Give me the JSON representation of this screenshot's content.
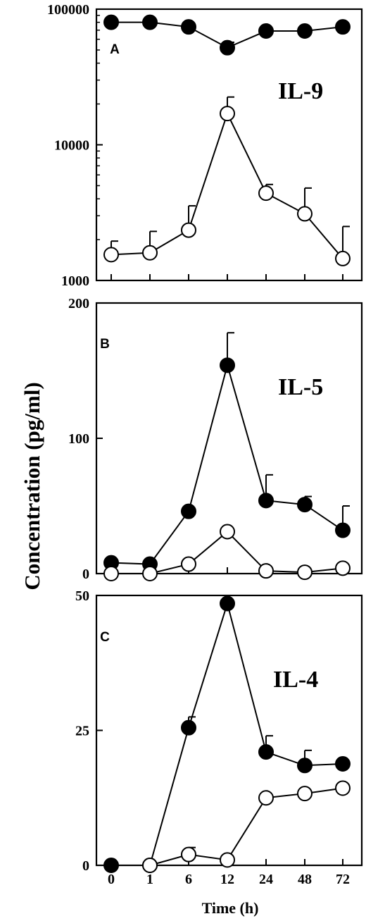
{
  "figure": {
    "ylabel": "Concentration (pg/ml)",
    "xlabel": "Time (h)"
  },
  "colors": {
    "filled_marker": "#000000",
    "open_marker": "#ffffff",
    "line": "#000000"
  },
  "chart_data": [
    {
      "type": "line",
      "panel_letter": "A",
      "title": "IL-9",
      "y_scale": "log",
      "ylim": [
        1000,
        100000
      ],
      "yticks": [
        1000,
        10000,
        100000
      ],
      "ytick_labels": [
        "1000",
        "10000",
        "100000"
      ],
      "categories": [
        "0",
        "1",
        "6",
        "12",
        "24",
        "48",
        "72"
      ],
      "show_x_tick_labels": false,
      "series": [
        {
          "marker": "filled",
          "values": [
            80000,
            80000,
            74000,
            52000,
            69000,
            69000,
            74000
          ],
          "errors": [
            null,
            null,
            null,
            57000,
            null,
            null,
            null
          ]
        },
        {
          "marker": "open",
          "values": [
            1550,
            1600,
            2350,
            17000,
            4400,
            3100,
            1450
          ],
          "errors": [
            1950,
            2300,
            3550,
            22500,
            5100,
            4800,
            2500
          ]
        }
      ]
    },
    {
      "type": "line",
      "panel_letter": "B",
      "title": "IL-5",
      "y_scale": "linear",
      "ylim": [
        0,
        200
      ],
      "yticks": [
        0,
        100,
        200
      ],
      "ytick_labels": [
        "0",
        "100",
        "200"
      ],
      "categories": [
        "0",
        "1",
        "6",
        "12",
        "24",
        "48",
        "72"
      ],
      "show_x_tick_labels": false,
      "series": [
        {
          "marker": "filled",
          "values": [
            8,
            7,
            46,
            154,
            54,
            51,
            32
          ],
          "errors": [
            null,
            null,
            null,
            178,
            73,
            57,
            50
          ]
        },
        {
          "marker": "open",
          "values": [
            0,
            0,
            7,
            31,
            2,
            1,
            4
          ],
          "errors": [
            null,
            null,
            null,
            null,
            null,
            null,
            null
          ]
        }
      ]
    },
    {
      "type": "line",
      "panel_letter": "C",
      "title": "IL-4",
      "y_scale": "linear",
      "ylim": [
        0,
        50
      ],
      "yticks": [
        0,
        25,
        50
      ],
      "ytick_labels": [
        "0",
        "25",
        "50"
      ],
      "categories": [
        "0",
        "1",
        "6",
        "12",
        "24",
        "48",
        "72"
      ],
      "show_x_tick_labels": true,
      "series": [
        {
          "marker": "filled",
          "values": [
            0,
            0,
            25.5,
            48.5,
            21,
            18.5,
            18.8
          ],
          "errors": [
            null,
            null,
            27.5,
            null,
            24,
            21.3,
            null
          ]
        },
        {
          "marker": "open",
          "values": [
            null,
            0,
            2,
            1,
            12.5,
            13.3,
            14.3
          ],
          "errors": [
            null,
            null,
            3.3,
            null,
            null,
            null,
            null
          ]
        }
      ]
    }
  ]
}
